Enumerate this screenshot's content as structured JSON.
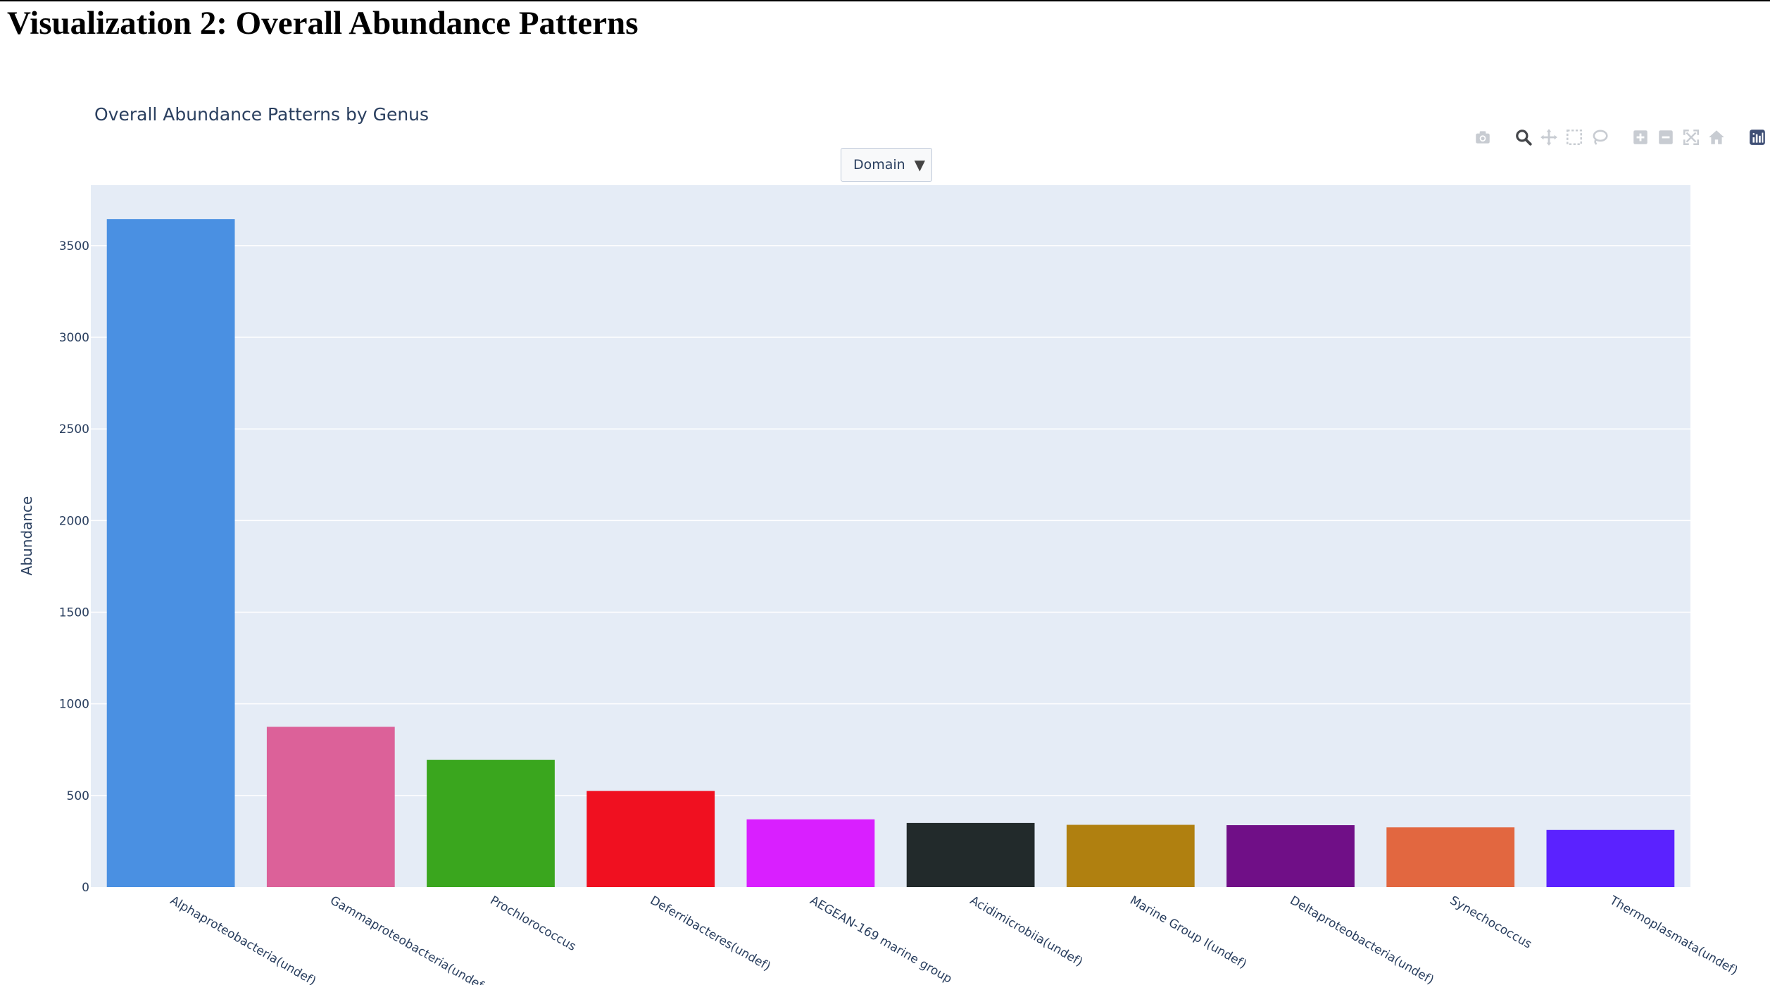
{
  "page": {
    "heading": "Visualization 2: Overall Abundance Patterns"
  },
  "dropdown": {
    "selected": "Domain",
    "arrow": "▼"
  },
  "modebar": {
    "icons": [
      "camera-icon",
      "zoom-icon",
      "pan-icon",
      "box-select-icon",
      "lasso-icon",
      "zoom-in-icon",
      "zoom-out-icon",
      "autoscale-icon",
      "reset-axes-icon",
      "plotly-logo-icon"
    ]
  },
  "colors": {
    "plot_background": "#e5ecf6",
    "gridline": "#ffffff",
    "text": "#2a3f5f"
  },
  "chart_data": {
    "type": "bar",
    "title": "Overall Abundance Patterns by Genus",
    "xlabel": "",
    "ylabel": "Abundance",
    "ylim": [
      0,
      3830
    ],
    "yticks": [
      0,
      500,
      1000,
      1500,
      2000,
      2500,
      3000,
      3500
    ],
    "grid": true,
    "categories": [
      "Alphaproteobacteria(undef)",
      "Gammaproteobacteria(undef)",
      "Prochlorococcus",
      "Deferribacteres(undef)",
      "AEGEAN-169 marine group",
      "Acidimicrobiia(undef)",
      "Marine Group I(undef)",
      "Deltaproteobacteria(undef)",
      "Synechococcus",
      "Thermoplasmata(undef)"
    ],
    "tick_labels_shown": [
      "Alphaproteobacteria(undef)",
      "Gammaproteobacteria(undef…",
      "Prochlorococcus",
      "Deferribacteres(undef)",
      "AEGEAN-169 marine group",
      "Acidimicrobiia(undef)",
      "Marine Group I(undef)",
      "Deltaproteobacteria(undef)",
      "Synechococcus",
      "Thermoplasmata(undef)"
    ],
    "values": [
      3645,
      875,
      695,
      525,
      370,
      350,
      340,
      338,
      326,
      312
    ],
    "bar_colors": [
      "#4a90e2",
      "#dc6199",
      "#3aa61e",
      "#f01020",
      "#d91fff",
      "#222a2b",
      "#b08010",
      "#700f87",
      "#e26740",
      "#5b22ff"
    ]
  }
}
